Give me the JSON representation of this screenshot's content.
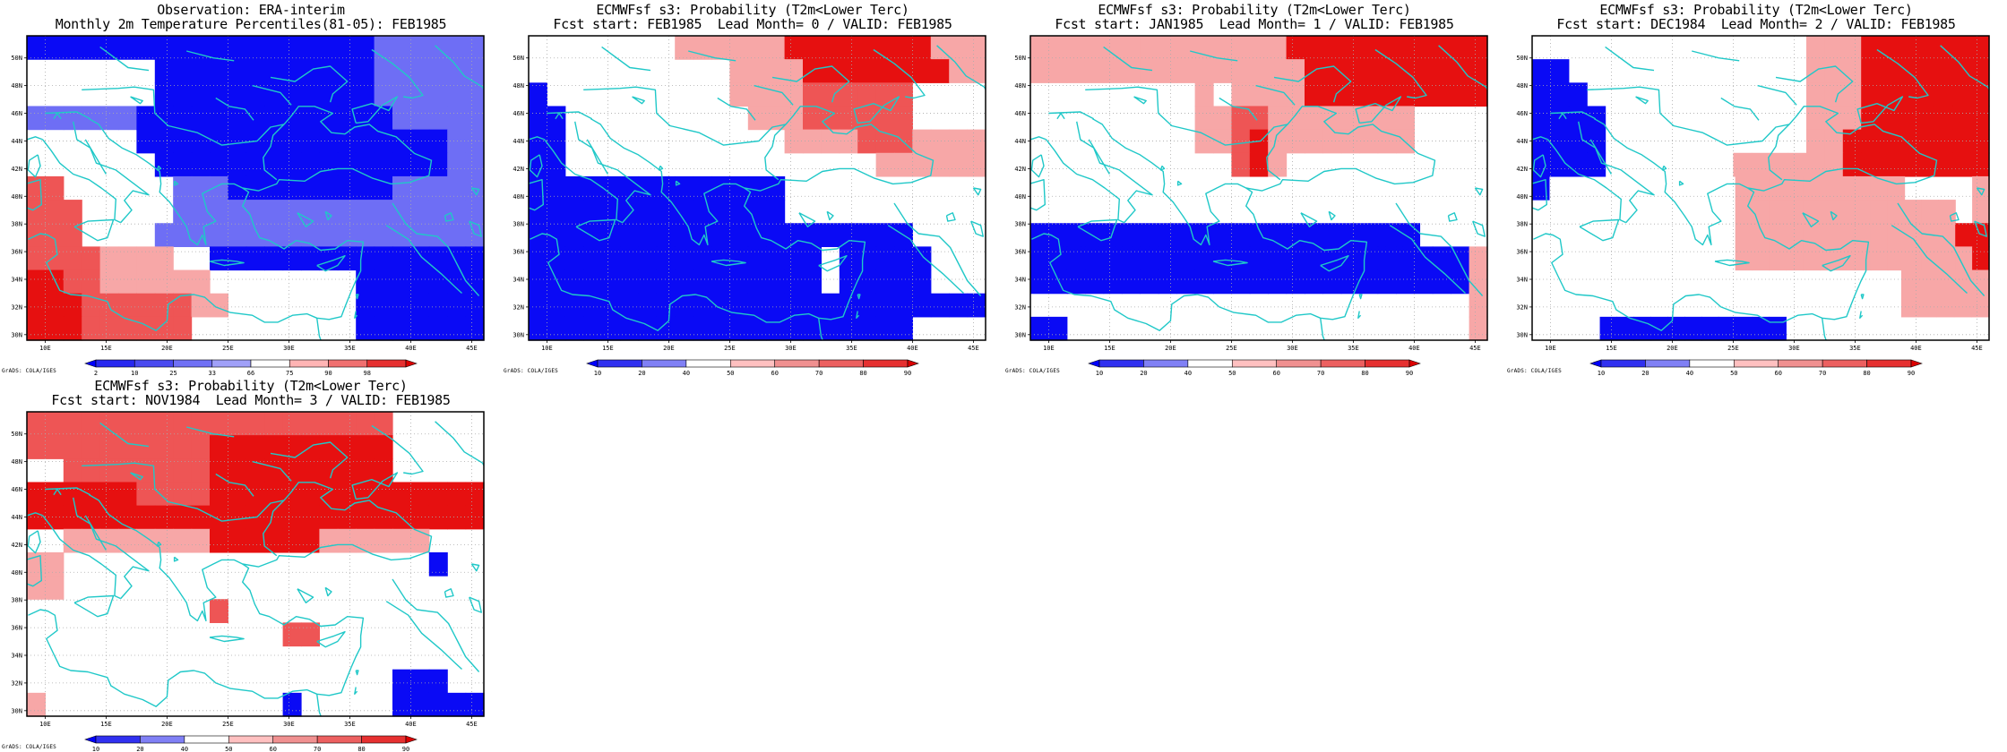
{
  "panels": [
    {
      "id": "obs",
      "title1": "Observation: ERA-interim",
      "title2": "Monthly 2m Temperature Percentiles(81-05): FEB1985",
      "cbar_labels": [
        "2",
        "10",
        "25",
        "33",
        "66",
        "75",
        "90",
        "98"
      ],
      "cbar_colors": [
        "#0000ff",
        "#2828f0",
        "#4a4af0",
        "#7070f5",
        "#a0a0f8",
        "#ffffff",
        "#ffb4b4",
        "#f07070",
        "#e63030",
        "#dc0000"
      ],
      "footer": "GrADS: COLA/IGES",
      "grid": [
        "BBBBBBBBBBBBBBBBBBBMMMMMM",
        "wwwwwwwBBBBBBBBBBBBMMMMMM",
        "wwwwwwwBBBBBBBBBBBBMMMMMM",
        "MMMMMMBBBBBBBBBBBBBBMMMMM",
        "wwwwwwBBBBBBBBBBBBBBBBBMM",
        "wwwwwwwBBBBBBBBBBBBBBBBMM",
        "rrwwwwwwMMMBBBBBBBBBMMMMM",
        "rrrwwwwwMMMMMMMMMMMMMMMMM",
        "rrrwwwwMMMMMMMMMMMMMMMMMM",
        "rrrrppppwwBBBBBBBBBBBBBBB",
        "RRrrppppppwwwwwwwwBBBBBBB",
        "RRRrrrrrrppwwwwwwwBBBBBBB",
        "RRRrrrrrrwwwwwwwwwBBBBBBB"
      ]
    },
    {
      "id": "fc0",
      "title1": "ECMWFsf s3: Probability (T2m<Lower Terc)",
      "title2": "Fcst start: FEB1985  Lead Month= 0 / VALID: FEB1985",
      "cbar_labels": [
        "10",
        "20",
        "40",
        "50",
        "60",
        "70",
        "80",
        "90"
      ],
      "cbar_colors": [
        "#0000ff",
        "#3030f0",
        "#8080f5",
        "#ffffff",
        "#ffc0c0",
        "#f09090",
        "#ec6060",
        "#e63030",
        "#dc0000"
      ],
      "footer": "GrADS: COLA/IGES",
      "grid": [
        "wwwwwwwwppppppRRRRRRRRppp",
        "wwwwwwwwwwwppppRRRRRRRRpp",
        "Bwwwwwwwwwwpppprrrrrrwwww",
        "BBwwwwwwwwwwppprrrrrrwwww",
        "BBwwwwwwwwwwwwpppprrrpppp",
        "BBwwwwwwwwwwwwwwwwwpppppp",
        "BBBBBBBBBBBBBBwwwwwwwwwww",
        "BBBBBBBBBBBBBBwwwwwwwwwww",
        "BBBBBBBBBBBBBBBBBBBBBwwww",
        "BBBBBBBBBBBBBBBBwBBBBBwww",
        "BBBBBBBBBBBBBBBBwBBBBBwww",
        "BBBBBBBBBBBBBBBBBBBBBBBBB",
        "BBBBBBBBBBBBBBBBBBBBBwwww"
      ]
    },
    {
      "id": "fc1",
      "title1": "ECMWFsf s3: Probability (T2m<Lower Terc)",
      "title2": "Fcst start: JAN1985  Lead Month= 1 / VALID: FEB1985",
      "cbar_labels": [
        "10",
        "20",
        "40",
        "50",
        "60",
        "70",
        "80",
        "90"
      ],
      "cbar_colors": [
        "#0000ff",
        "#3030f0",
        "#8080f5",
        "#ffffff",
        "#ffc0c0",
        "#f09090",
        "#ec6060",
        "#e63030",
        "#dc0000"
      ],
      "footer": "GrADS: COLA/IGES",
      "grid": [
        "ppppppppppppppRRRRRRRRRRR",
        "pppppppppppppppRRRRRRRRRR",
        "wwwwwwwwwpwppppRRRRRRRRRR",
        "wwwwwwwwwpprrppppppppwwww",
        "wwwwwwwwwpprRppppppppwwww",
        "wwwwwwwwwwwrRpwwwwwwwwwww",
        "wwwwwwwwwwwwwwwwwwwwwwwww",
        "wwwwwwwwwwwwwwwwwwwwwwwww",
        "BBBBBBBBBBBBBBBBBBBBBBBwwww",
        "BBBBBBBBBBBBBBBBBBBBBBBBp",
        "BBBBBBBBBBBBBBBBBBBBBBBBp",
        "wwwwwwwwwwwwwwwwwwwwwwwwp",
        "BBwwwwwwwwwwwwwwwwwwwwwwp"
      ]
    },
    {
      "id": "fc2",
      "title1": "ECMWFsf s3: Probability (T2m<Lower Terc)",
      "title2": "Fcst start: DEC1984  Lead Month= 2 / VALID: FEB1985",
      "cbar_labels": [
        "10",
        "20",
        "40",
        "50",
        "60",
        "70",
        "80",
        "90"
      ],
      "cbar_colors": [
        "#0000ff",
        "#3030f0",
        "#8080f5",
        "#ffffff",
        "#ffc0c0",
        "#f09090",
        "#ec6060",
        "#e63030",
        "#dc0000"
      ],
      "footer": "GrADS: COLA/IGES",
      "grid": [
        "wwwwwwwwwwwwwwwpppRRRRRRR",
        "BBwwwwwwwwwwwwwpppRRRRRRR",
        "BBBwwwwwwwwwwwwpppRRRRRRR",
        "BBBBwwwwwwwwwwwpppRRRRRRR",
        "BBBBwwwwwwwwwwwppRRRRRRRR",
        "BBBBwwwwwwwppppppRRRRRRRR",
        "Bwwwwwwwwwwwppppppppppwwwwp",
        "wwwwwwwwwwwwpppppppppppppwp",
        "wwwwwwwwwwwwpppppppppppppRR",
        "wwwwwwwwwwwwppppppppppppppR",
        "wwwwwwwwwwwwwwwwwwwwwppppp",
        "wwwwwwwwwwwwwwwwwwwwwppppp",
        "wwwwBBBBBBBBBBBwwwwwwwwwwww"
      ]
    },
    {
      "id": "fc3",
      "title1": "ECMWFsf s3: Probability (T2m<Lower Terc)",
      "title2": "Fcst start: NOV1984  Lead Month= 3 / VALID: FEB1985",
      "cbar_labels": [
        "10",
        "20",
        "40",
        "50",
        "60",
        "70",
        "80",
        "90"
      ],
      "cbar_colors": [
        "#0000ff",
        "#3030f0",
        "#8080f5",
        "#ffffff",
        "#ffc0c0",
        "#f09090",
        "#ec6060",
        "#e63030",
        "#dc0000"
      ],
      "footer": "GrADS: COLA/IGES",
      "grid": [
        "rrrrrrrrrrrrrrrrrrrrwwwww",
        "rrrrrrrrrrRRRRRRRRRRwwwww",
        "wwrrrrrrrrRRRRRRRRRRwwwww",
        "RRRRRRrrrrRRRRRRRRRRRRRRR",
        "RRRRRRRRRRRRRRRRRRRRRRRRR",
        "wwppppppppRRRRRRppppppwww",
        "ppwwwwwwwwwwwwwwwwwwwwBww",
        "ppwwwwwwwwwwwwwwwwwwwwwww",
        "wwwwwwwwwwrwwwwwwwwwwwwww",
        "wwwwwwwwwwwwwwrrwwwwwwwww",
        "wwwwwwwwwwwwwwwwwwwwwwwww",
        "wwwwwwwwwwwwwwwwwwwwBBBww",
        "pwwwwwwwwwwwwwBwwwwwBBBBB"
      ]
    }
  ],
  "axis": {
    "lon_ticks": [
      "10E",
      "15E",
      "20E",
      "25E",
      "30E",
      "35E",
      "40E",
      "45E"
    ],
    "lat_ticks": [
      "50N",
      "48N",
      "46N",
      "44N",
      "42N",
      "40N",
      "38N",
      "36N",
      "34N",
      "32N",
      "30N"
    ]
  },
  "colors": {
    "coast": "#20c8c8",
    "B": "#0a0af5",
    "M": "#6e6ef5",
    "w": "#ffffff",
    "p": "#f7a7a7",
    "r": "#ee5555",
    "R": "#e61010"
  }
}
